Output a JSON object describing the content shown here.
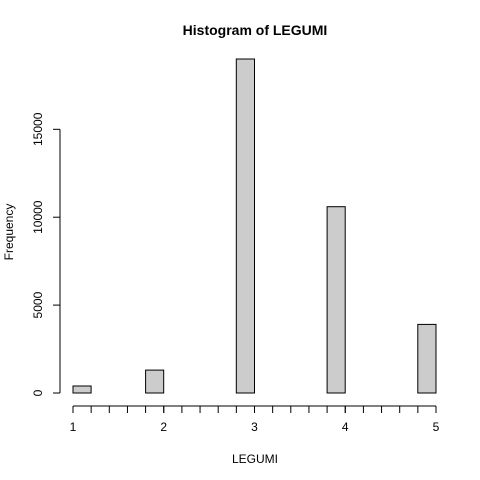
{
  "chart_data": {
    "type": "bar",
    "title": "Histogram of LEGUMI",
    "xlabel": "LEGUMI",
    "ylabel": "Frequency",
    "x_ticks": [
      1,
      2,
      3,
      4,
      5
    ],
    "x_tick_labels": [
      "1",
      "2",
      "3",
      "4",
      "5"
    ],
    "y_ticks": [
      0,
      5000,
      10000,
      15000
    ],
    "y_tick_labels": [
      "0",
      "5000",
      "10000",
      "15000"
    ],
    "xlim": [
      1,
      5
    ],
    "ylim": [
      0,
      19000
    ],
    "bin_width": 0.2,
    "bins": [
      {
        "start": 1.0,
        "end": 1.2,
        "count": 400
      },
      {
        "start": 1.2,
        "end": 1.4,
        "count": 0
      },
      {
        "start": 1.4,
        "end": 1.6,
        "count": 0
      },
      {
        "start": 1.6,
        "end": 1.8,
        "count": 0
      },
      {
        "start": 1.8,
        "end": 2.0,
        "count": 1300
      },
      {
        "start": 2.0,
        "end": 2.2,
        "count": 0
      },
      {
        "start": 2.2,
        "end": 2.4,
        "count": 0
      },
      {
        "start": 2.4,
        "end": 2.6,
        "count": 0
      },
      {
        "start": 2.6,
        "end": 2.8,
        "count": 0
      },
      {
        "start": 2.8,
        "end": 3.0,
        "count": 19000
      },
      {
        "start": 3.0,
        "end": 3.2,
        "count": 0
      },
      {
        "start": 3.2,
        "end": 3.4,
        "count": 0
      },
      {
        "start": 3.4,
        "end": 3.6,
        "count": 0
      },
      {
        "start": 3.6,
        "end": 3.8,
        "count": 0
      },
      {
        "start": 3.8,
        "end": 4.0,
        "count": 10600
      },
      {
        "start": 4.0,
        "end": 4.2,
        "count": 0
      },
      {
        "start": 4.2,
        "end": 4.4,
        "count": 0
      },
      {
        "start": 4.4,
        "end": 4.6,
        "count": 0
      },
      {
        "start": 4.6,
        "end": 4.8,
        "count": 0
      },
      {
        "start": 4.8,
        "end": 5.0,
        "count": 3900
      }
    ],
    "bar_fill": "#cccccc",
    "bar_stroke": "#000000",
    "grid": false
  }
}
